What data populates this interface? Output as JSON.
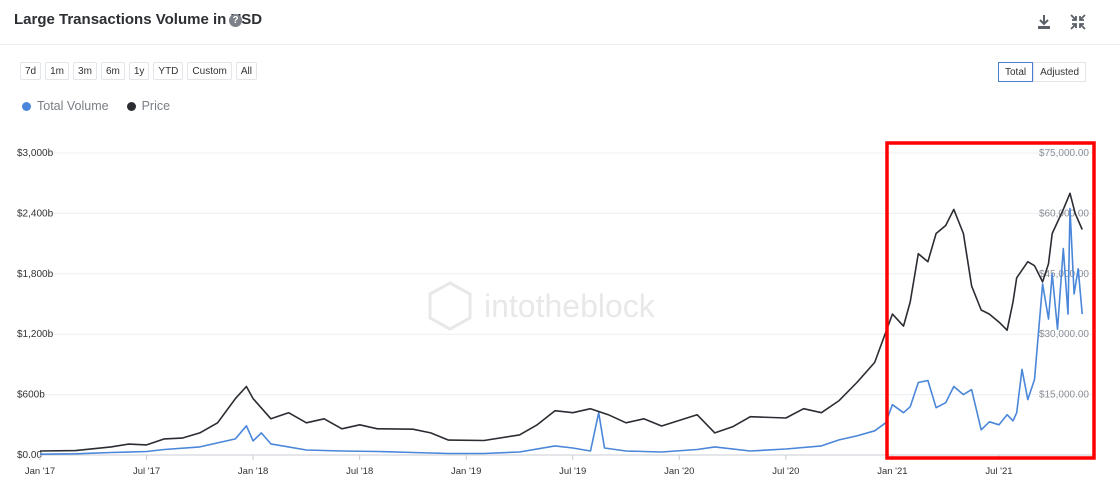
{
  "header": {
    "title": "Large Transactions Volume in USD",
    "help_icon": "question-circle-icon",
    "download_icon": "download-icon",
    "collapse_icon": "collapse-icon"
  },
  "ranges": [
    "7d",
    "1m",
    "3m",
    "6m",
    "1y",
    "YTD",
    "Custom",
    "All"
  ],
  "modes": {
    "total": "Total",
    "adjusted": "Adjusted",
    "active": "Total"
  },
  "legend": [
    {
      "name": "Total Volume",
      "color": "#4a86d9"
    },
    {
      "name": "Price",
      "color": "#2b2d33"
    }
  ],
  "watermark": "intotheblock",
  "highlight_color": "#ff0000",
  "chart_data": {
    "type": "line",
    "x_labels": [
      "Jan '17",
      "Jul '17",
      "Jan '18",
      "Jul '18",
      "Jan '19",
      "Jul '19",
      "Jan '20",
      "Jul '20",
      "Jan '21",
      "Jul '21"
    ],
    "y_left": {
      "labels": [
        "$0.00",
        "$600b",
        "$1,200b",
        "$1,800b",
        "$2,400b",
        "$3,000b"
      ],
      "range": [
        0,
        3000
      ],
      "unit": "USD billions"
    },
    "y_right": {
      "labels": [
        "$15,000.00",
        "$30,000.00",
        "$45,000.00",
        "$60,000.00",
        "$75,000.00"
      ],
      "range": [
        0,
        75000
      ],
      "unit": "USD"
    },
    "grid": true,
    "highlight_box": {
      "from": "2021-01",
      "to": "2021-11"
    },
    "series": [
      {
        "name": "Total Volume",
        "axis": "left",
        "points": [
          [
            "2017-01",
            8
          ],
          [
            "2017-03",
            12
          ],
          [
            "2017-05",
            25
          ],
          [
            "2017-07",
            35
          ],
          [
            "2017-08",
            55
          ],
          [
            "2017-10",
            80
          ],
          [
            "2017-12",
            160
          ],
          [
            "2017-12-20",
            290
          ],
          [
            "2018-01",
            140
          ],
          [
            "2018-01-15",
            220
          ],
          [
            "2018-02",
            110
          ],
          [
            "2018-04",
            50
          ],
          [
            "2018-06",
            40
          ],
          [
            "2018-08",
            35
          ],
          [
            "2018-10",
            25
          ],
          [
            "2018-12",
            15
          ],
          [
            "2019-02",
            15
          ],
          [
            "2019-04",
            30
          ],
          [
            "2019-06",
            90
          ],
          [
            "2019-07",
            70
          ],
          [
            "2019-08",
            40
          ],
          [
            "2019-08-15",
            420
          ],
          [
            "2019-08-25",
            70
          ],
          [
            "2019-10",
            40
          ],
          [
            "2019-12",
            30
          ],
          [
            "2020-02",
            55
          ],
          [
            "2020-03",
            80
          ],
          [
            "2020-05",
            40
          ],
          [
            "2020-07",
            60
          ],
          [
            "2020-09",
            90
          ],
          [
            "2020-10",
            150
          ],
          [
            "2020-11",
            190
          ],
          [
            "2020-12",
            240
          ],
          [
            "2020-12-20",
            320
          ],
          [
            "2021-01",
            500
          ],
          [
            "2021-01-20",
            420
          ],
          [
            "2021-02",
            480
          ],
          [
            "2021-02-15",
            720
          ],
          [
            "2021-03",
            740
          ],
          [
            "2021-03-15",
            470
          ],
          [
            "2021-04",
            520
          ],
          [
            "2021-04-15",
            680
          ],
          [
            "2021-05",
            600
          ],
          [
            "2021-05-15",
            650
          ],
          [
            "2021-06",
            250
          ],
          [
            "2021-06-15",
            330
          ],
          [
            "2021-07",
            300
          ],
          [
            "2021-07-15",
            400
          ],
          [
            "2021-07-25",
            340
          ],
          [
            "2021-08",
            420
          ],
          [
            "2021-08-10",
            850
          ],
          [
            "2021-08-20",
            550
          ],
          [
            "2021-09",
            750
          ],
          [
            "2021-09-15",
            1700
          ],
          [
            "2021-09-25",
            1350
          ],
          [
            "2021-10",
            1800
          ],
          [
            "2021-10-10",
            1250
          ],
          [
            "2021-10-20",
            2050
          ],
          [
            "2021-10-28",
            1400
          ],
          [
            "2021-11",
            2450
          ],
          [
            "2021-11-08",
            1600
          ],
          [
            "2021-11-15",
            1850
          ],
          [
            "2021-11-22",
            1400
          ]
        ]
      },
      {
        "name": "Price",
        "axis": "right",
        "points": [
          [
            "2017-01",
            1000
          ],
          [
            "2017-03",
            1100
          ],
          [
            "2017-05",
            2000
          ],
          [
            "2017-06",
            2700
          ],
          [
            "2017-07",
            2500
          ],
          [
            "2017-08",
            4000
          ],
          [
            "2017-09",
            4200
          ],
          [
            "2017-10",
            5500
          ],
          [
            "2017-11",
            8000
          ],
          [
            "2017-12",
            14000
          ],
          [
            "2017-12-20",
            17000
          ],
          [
            "2018-01",
            14000
          ],
          [
            "2018-02",
            9000
          ],
          [
            "2018-03",
            10500
          ],
          [
            "2018-04",
            8000
          ],
          [
            "2018-05",
            9000
          ],
          [
            "2018-06",
            6500
          ],
          [
            "2018-07",
            7500
          ],
          [
            "2018-08",
            6500
          ],
          [
            "2018-10",
            6400
          ],
          [
            "2018-11",
            5500
          ],
          [
            "2018-12",
            3700
          ],
          [
            "2019-02",
            3600
          ],
          [
            "2019-04",
            5000
          ],
          [
            "2019-05",
            7500
          ],
          [
            "2019-06",
            11000
          ],
          [
            "2019-07",
            10500
          ],
          [
            "2019-08",
            11500
          ],
          [
            "2019-09",
            10000
          ],
          [
            "2019-10",
            8000
          ],
          [
            "2019-11",
            9000
          ],
          [
            "2019-12",
            7200
          ],
          [
            "2020-02",
            10000
          ],
          [
            "2020-03",
            5500
          ],
          [
            "2020-04",
            7000
          ],
          [
            "2020-05",
            9500
          ],
          [
            "2020-07",
            9200
          ],
          [
            "2020-08",
            11500
          ],
          [
            "2020-09",
            10500
          ],
          [
            "2020-10",
            13500
          ],
          [
            "2020-11",
            18000
          ],
          [
            "2020-12",
            23000
          ],
          [
            "2021-01",
            35000
          ],
          [
            "2021-01-20",
            32000
          ],
          [
            "2021-02",
            38000
          ],
          [
            "2021-02-15",
            50000
          ],
          [
            "2021-03",
            48000
          ],
          [
            "2021-03-15",
            55000
          ],
          [
            "2021-04",
            57000
          ],
          [
            "2021-04-15",
            61000
          ],
          [
            "2021-05",
            55000
          ],
          [
            "2021-05-15",
            42000
          ],
          [
            "2021-06",
            36000
          ],
          [
            "2021-06-15",
            35000
          ],
          [
            "2021-07",
            33000
          ],
          [
            "2021-07-15",
            31000
          ],
          [
            "2021-07-25",
            38000
          ],
          [
            "2021-08",
            44000
          ],
          [
            "2021-08-20",
            48000
          ],
          [
            "2021-09",
            47000
          ],
          [
            "2021-09-15",
            43000
          ],
          [
            "2021-09-25",
            47500
          ],
          [
            "2021-10",
            55000
          ],
          [
            "2021-10-20",
            61000
          ],
          [
            "2021-11",
            65000
          ],
          [
            "2021-11-10",
            60000
          ],
          [
            "2021-11-22",
            56000
          ]
        ]
      }
    ]
  }
}
